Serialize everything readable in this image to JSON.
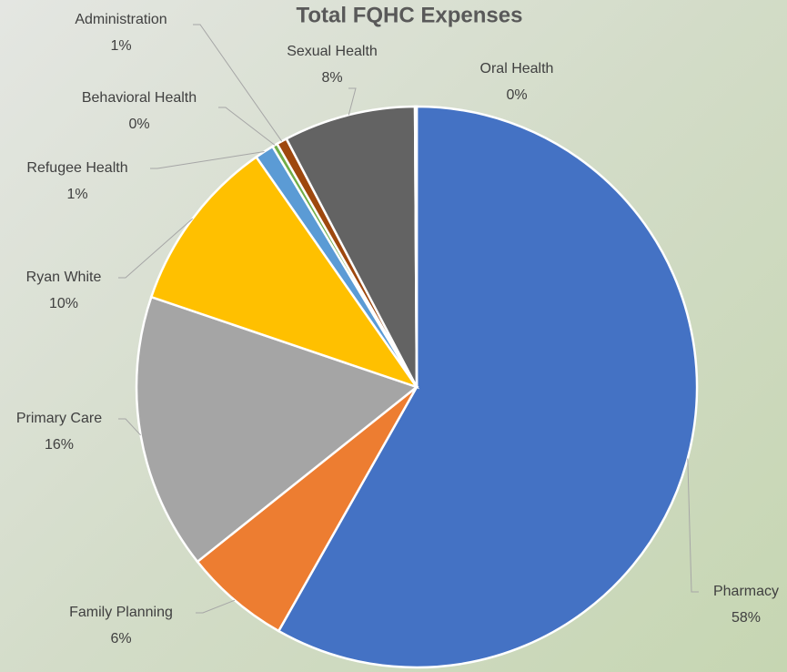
{
  "chart_data": {
    "type": "pie",
    "title": "Total FQHC Expenses",
    "categories": [
      "Pharmacy",
      "Family Planning",
      "Primary Care",
      "Ryan White",
      "Refugee Health",
      "Behavioral Health",
      "Administration",
      "Sexual Health",
      "Oral Health"
    ],
    "values": [
      58.2,
      6.1,
      15.9,
      10.1,
      1.1,
      0.3,
      0.6,
      7.6,
      0.1
    ],
    "value_labels": [
      "58%",
      "6%",
      "16%",
      "10%",
      "1%",
      "0%",
      "1%",
      "8%",
      "0%"
    ],
    "colors": [
      "#4472c4",
      "#ed7d31",
      "#a5a5a5",
      "#ffc000",
      "#5b9bd5",
      "#70ad47",
      "#9e480e",
      "#636363",
      "#997300"
    ]
  }
}
